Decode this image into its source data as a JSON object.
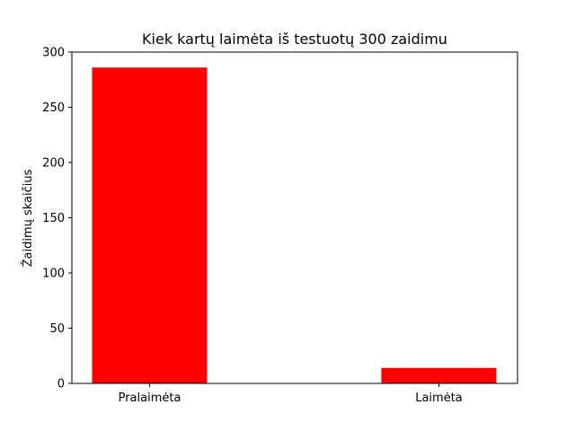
{
  "chart_data": {
    "type": "bar",
    "title": "Kiek kartų laimėta iš testuotų 300 zaidimu",
    "xlabel": "",
    "ylabel": "Žaidimų skaičius",
    "categories": [
      "Pralaimėta",
      "Laimėta"
    ],
    "values": [
      286,
      14
    ],
    "ylim": [
      0,
      300
    ],
    "yticks": [
      0,
      50,
      100,
      150,
      200,
      250,
      300
    ],
    "bar_color": "#ff0000",
    "grid": false,
    "legend": "none"
  }
}
